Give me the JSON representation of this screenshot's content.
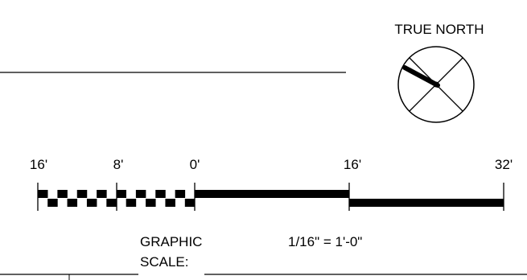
{
  "north_arrow": {
    "label": "TRUE NORTH",
    "icon": "north-arrow-icon"
  },
  "scale_bar": {
    "tick_labels": [
      "16'",
      "8'",
      "0'",
      "16'",
      "32'"
    ],
    "title_line1": "GRAPHIC",
    "title_line2": "SCALE:",
    "ratio": "1/16\" = 1'-0\""
  }
}
